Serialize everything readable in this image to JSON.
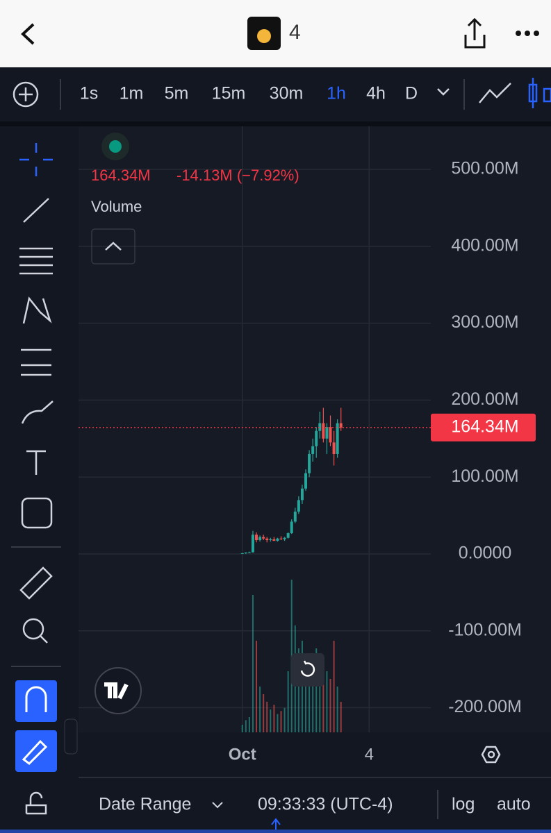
{
  "header": {
    "title": "4"
  },
  "toolbar": {
    "intervals": [
      "1s",
      "1m",
      "5m",
      "15m",
      "30m",
      "1h",
      "4h",
      "D"
    ],
    "selected": "1h"
  },
  "chart_data": {
    "type": "candlestick",
    "legend": {
      "price": "164.34M",
      "change": "-14.13M (−7.92%)",
      "study": "Volume"
    },
    "x": [
      0,
      2,
      4,
      6,
      8,
      10,
      12,
      14,
      16,
      18,
      20,
      22,
      24,
      26,
      28,
      30,
      32,
      34,
      36,
      38,
      40,
      42,
      44,
      46,
      48,
      50,
      52,
      54,
      56
    ],
    "open": [
      0,
      1,
      2,
      2,
      25,
      18,
      22,
      20,
      18,
      19,
      17,
      20,
      19,
      21,
      27,
      42,
      55,
      70,
      85,
      105,
      130,
      140,
      160,
      170,
      150,
      165,
      145,
      130,
      170
    ],
    "high": [
      1,
      2,
      3,
      30,
      28,
      24,
      25,
      22,
      21,
      22,
      21,
      23,
      22,
      28,
      45,
      60,
      75,
      90,
      110,
      135,
      150,
      165,
      185,
      190,
      170,
      180,
      160,
      175,
      190
    ],
    "low": [
      0,
      0,
      1,
      2,
      15,
      16,
      18,
      15,
      16,
      17,
      16,
      18,
      17,
      20,
      26,
      40,
      52,
      65,
      82,
      100,
      120,
      125,
      150,
      145,
      130,
      140,
      115,
      125,
      160
    ],
    "close": [
      1,
      2,
      2,
      25,
      18,
      22,
      20,
      18,
      19,
      17,
      20,
      19,
      21,
      27,
      42,
      55,
      70,
      85,
      105,
      130,
      140,
      160,
      170,
      150,
      165,
      145,
      130,
      170,
      164.34
    ],
    "volume": [
      5,
      8,
      10,
      90,
      60,
      30,
      25,
      20,
      15,
      18,
      12,
      14,
      16,
      40,
      100,
      70,
      55,
      60,
      50,
      45,
      40,
      55,
      50,
      45,
      40,
      35,
      60,
      30,
      20
    ],
    "up_color": "#26a69a",
    "down_color": "#ef5350",
    "xlim": [
      -93,
      107
    ],
    "ylim": [
      -232,
      556
    ],
    "xticks": [
      {
        "value": 0,
        "label": "Oct"
      },
      {
        "value": 72,
        "label": "4"
      }
    ],
    "yticks": [
      {
        "value": 500,
        "label": "500.00M"
      },
      {
        "value": 400,
        "label": "400.00M"
      },
      {
        "value": 300,
        "label": "300.00M"
      },
      {
        "value": 200,
        "label": "200.00M"
      },
      {
        "value": 100,
        "label": "100.00M"
      },
      {
        "value": 0,
        "label": "0.0000"
      },
      {
        "value": -100,
        "label": "-100.00M"
      },
      {
        "value": -200,
        "label": "-200.00M"
      }
    ],
    "last_price": {
      "value": 164.34,
      "label": "164.34M"
    },
    "grid": true
  },
  "footer": {
    "date_range": "Date Range",
    "time": "09:33:33 (UTC-4)",
    "log": "log",
    "auto": "auto"
  }
}
